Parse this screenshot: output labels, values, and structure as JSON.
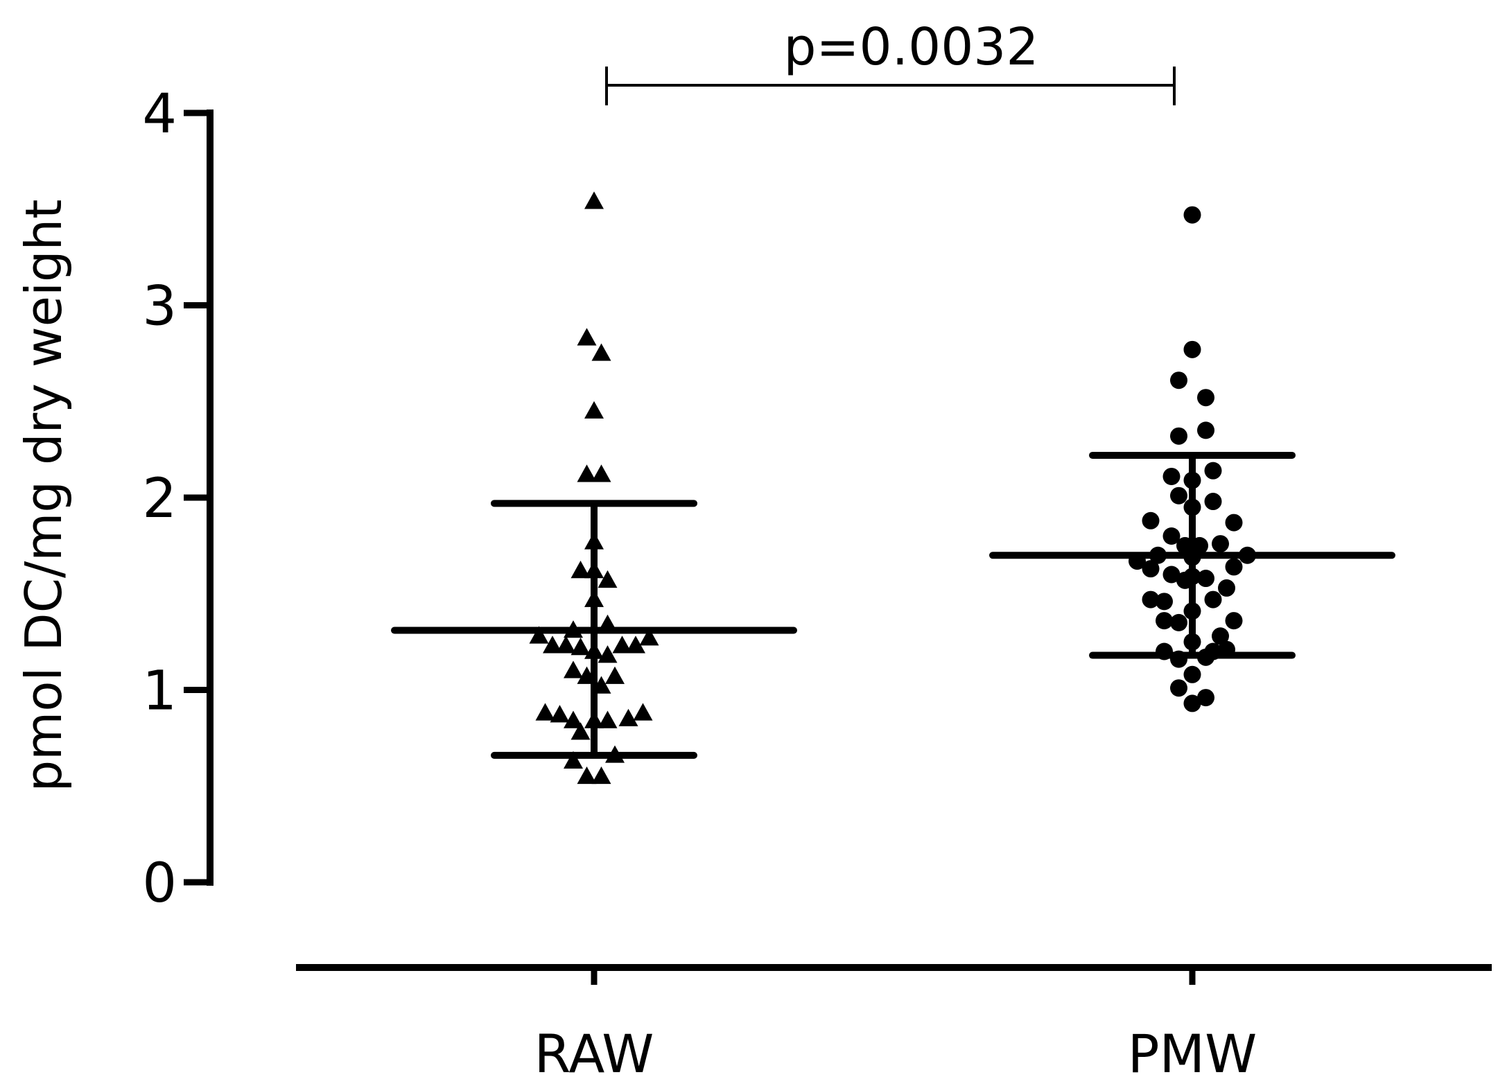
{
  "chart_data": {
    "type": "scatter",
    "title": "",
    "xlabel": "",
    "ylabel": "pmol DC/mg dry weight",
    "ylim": [
      0,
      4
    ],
    "yticks": [
      0,
      1,
      2,
      3,
      4
    ],
    "categories": [
      "RAW",
      "PMW"
    ],
    "grid": false,
    "legend": "none",
    "marker_color": "#000000",
    "series": [
      {
        "category": "RAW",
        "marker": "triangle",
        "mean": 1.31,
        "sd_upper": 1.97,
        "sd_lower": 0.66,
        "points": [
          {
            "dx": 0.0,
            "y": 3.54
          },
          {
            "dx": -0.07,
            "y": 2.83
          },
          {
            "dx": 0.07,
            "y": 2.75
          },
          {
            "dx": 0.0,
            "y": 2.45
          },
          {
            "dx": -0.07,
            "y": 2.12
          },
          {
            "dx": 0.07,
            "y": 2.12
          },
          {
            "dx": 0.0,
            "y": 1.77
          },
          {
            "dx": -0.13,
            "y": 1.62
          },
          {
            "dx": 0.0,
            "y": 1.62
          },
          {
            "dx": 0.13,
            "y": 1.57
          },
          {
            "dx": 0.0,
            "y": 1.47
          },
          {
            "dx": -0.2,
            "y": 1.31
          },
          {
            "dx": 0.13,
            "y": 1.34
          },
          {
            "dx": -0.53,
            "y": 1.28
          },
          {
            "dx": 0.53,
            "y": 1.27
          },
          {
            "dx": -0.4,
            "y": 1.23
          },
          {
            "dx": -0.27,
            "y": 1.23
          },
          {
            "dx": -0.13,
            "y": 1.22
          },
          {
            "dx": 0.27,
            "y": 1.23
          },
          {
            "dx": 0.4,
            "y": 1.23
          },
          {
            "dx": 0.0,
            "y": 1.2
          },
          {
            "dx": 0.13,
            "y": 1.18
          },
          {
            "dx": -0.2,
            "y": 1.1
          },
          {
            "dx": -0.07,
            "y": 1.07
          },
          {
            "dx": 0.2,
            "y": 1.07
          },
          {
            "dx": 0.07,
            "y": 1.02
          },
          {
            "dx": -0.47,
            "y": 0.88
          },
          {
            "dx": -0.33,
            "y": 0.87
          },
          {
            "dx": 0.47,
            "y": 0.88
          },
          {
            "dx": -0.2,
            "y": 0.84
          },
          {
            "dx": 0.0,
            "y": 0.84
          },
          {
            "dx": 0.13,
            "y": 0.84
          },
          {
            "dx": 0.33,
            "y": 0.85
          },
          {
            "dx": -0.13,
            "y": 0.78
          },
          {
            "dx": -0.2,
            "y": 0.63
          },
          {
            "dx": 0.2,
            "y": 0.66
          },
          {
            "dx": -0.07,
            "y": 0.55
          },
          {
            "dx": 0.07,
            "y": 0.55
          }
        ]
      },
      {
        "category": "PMW",
        "marker": "circle",
        "mean": 1.7,
        "sd_upper": 2.22,
        "sd_lower": 1.18,
        "points": [
          {
            "dx": 0.0,
            "y": 3.47
          },
          {
            "dx": 0.0,
            "y": 2.77
          },
          {
            "dx": -0.13,
            "y": 2.61
          },
          {
            "dx": 0.13,
            "y": 2.52
          },
          {
            "dx": -0.13,
            "y": 2.32
          },
          {
            "dx": 0.13,
            "y": 2.35
          },
          {
            "dx": -0.2,
            "y": 2.11
          },
          {
            "dx": 0.0,
            "y": 2.09
          },
          {
            "dx": 0.2,
            "y": 2.14
          },
          {
            "dx": -0.13,
            "y": 2.01
          },
          {
            "dx": 0.0,
            "y": 1.95
          },
          {
            "dx": 0.2,
            "y": 1.98
          },
          {
            "dx": -0.4,
            "y": 1.88
          },
          {
            "dx": 0.4,
            "y": 1.87
          },
          {
            "dx": -0.2,
            "y": 1.8
          },
          {
            "dx": -0.07,
            "y": 1.75
          },
          {
            "dx": 0.07,
            "y": 1.75
          },
          {
            "dx": 0.27,
            "y": 1.76
          },
          {
            "dx": -0.53,
            "y": 1.67
          },
          {
            "dx": -0.33,
            "y": 1.7
          },
          {
            "dx": 0.0,
            "y": 1.69
          },
          {
            "dx": 0.53,
            "y": 1.7
          },
          {
            "dx": -0.4,
            "y": 1.63
          },
          {
            "dx": -0.2,
            "y": 1.6
          },
          {
            "dx": 0.0,
            "y": 1.59
          },
          {
            "dx": 0.13,
            "y": 1.58
          },
          {
            "dx": 0.4,
            "y": 1.64
          },
          {
            "dx": -0.07,
            "y": 1.57
          },
          {
            "dx": 0.33,
            "y": 1.53
          },
          {
            "dx": -0.4,
            "y": 1.47
          },
          {
            "dx": -0.27,
            "y": 1.46
          },
          {
            "dx": 0.2,
            "y": 1.47
          },
          {
            "dx": 0.0,
            "y": 1.41
          },
          {
            "dx": -0.27,
            "y": 1.36
          },
          {
            "dx": -0.13,
            "y": 1.35
          },
          {
            "dx": 0.4,
            "y": 1.36
          },
          {
            "dx": 0.27,
            "y": 1.28
          },
          {
            "dx": 0.0,
            "y": 1.25
          },
          {
            "dx": -0.27,
            "y": 1.2
          },
          {
            "dx": 0.2,
            "y": 1.2
          },
          {
            "dx": -0.13,
            "y": 1.16
          },
          {
            "dx": 0.13,
            "y": 1.17
          },
          {
            "dx": 0.33,
            "y": 1.21
          },
          {
            "dx": 0.0,
            "y": 1.08
          },
          {
            "dx": -0.13,
            "y": 1.01
          },
          {
            "dx": 0.13,
            "y": 0.96
          },
          {
            "dx": 0.0,
            "y": 0.93
          }
        ]
      }
    ],
    "annotations": [
      {
        "text": "p=0.0032",
        "type": "significance-bracket",
        "from": "RAW",
        "to": "PMW"
      }
    ]
  }
}
